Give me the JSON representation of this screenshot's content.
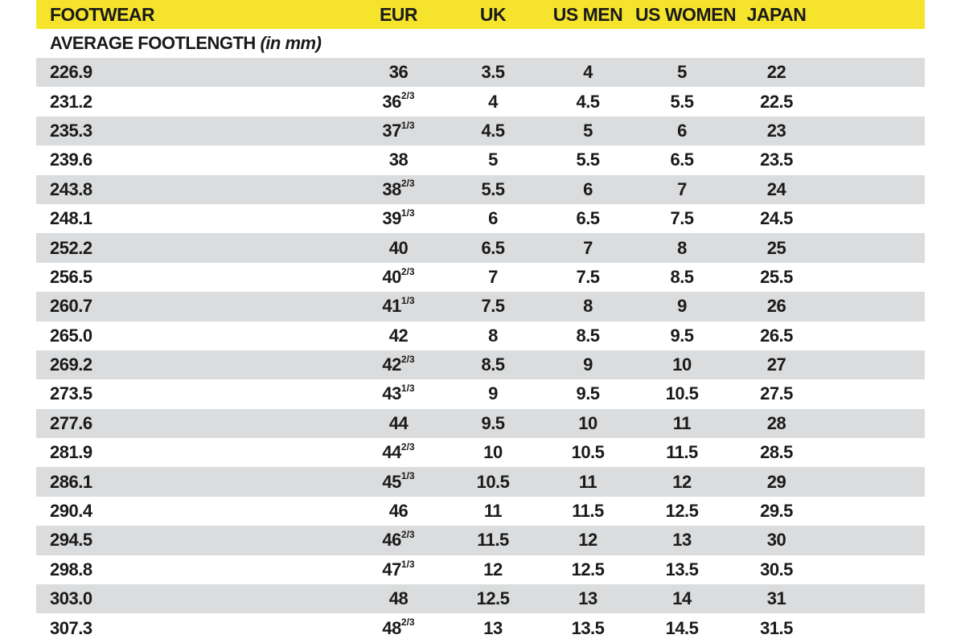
{
  "table": {
    "columns": [
      "FOOTWEAR",
      "EUR",
      "UK",
      "US MEN",
      "US WOMEN",
      "JAPAN"
    ],
    "subheader_label": "AVERAGE FOOTLENGTH",
    "subheader_note": "(in mm)",
    "colors": {
      "header_bg": "#F6E42C",
      "alt_row_bg": "#DBDCDD",
      "text": "#1A1A1A",
      "page_bg": "#FFFFFF"
    },
    "rows": [
      {
        "mm": "226.9",
        "eur": "36",
        "eur_frac": "",
        "uk": "3.5",
        "us_men": "4",
        "us_women": "5",
        "japan": "22"
      },
      {
        "mm": "231.2",
        "eur": "36",
        "eur_frac": "2/3",
        "uk": "4",
        "us_men": "4.5",
        "us_women": "5.5",
        "japan": "22.5"
      },
      {
        "mm": "235.3",
        "eur": "37",
        "eur_frac": "1/3",
        "uk": "4.5",
        "us_men": "5",
        "us_women": "6",
        "japan": "23"
      },
      {
        "mm": "239.6",
        "eur": "38",
        "eur_frac": "",
        "uk": "5",
        "us_men": "5.5",
        "us_women": "6.5",
        "japan": "23.5"
      },
      {
        "mm": "243.8",
        "eur": "38",
        "eur_frac": "2/3",
        "uk": "5.5",
        "us_men": "6",
        "us_women": "7",
        "japan": "24"
      },
      {
        "mm": "248.1",
        "eur": "39",
        "eur_frac": "1/3",
        "uk": "6",
        "us_men": "6.5",
        "us_women": "7.5",
        "japan": "24.5"
      },
      {
        "mm": "252.2",
        "eur": "40",
        "eur_frac": "",
        "uk": "6.5",
        "us_men": "7",
        "us_women": "8",
        "japan": "25"
      },
      {
        "mm": "256.5",
        "eur": "40",
        "eur_frac": "2/3",
        "uk": "7",
        "us_men": "7.5",
        "us_women": "8.5",
        "japan": "25.5"
      },
      {
        "mm": "260.7",
        "eur": "41",
        "eur_frac": "1/3",
        "uk": "7.5",
        "us_men": "8",
        "us_women": "9",
        "japan": "26"
      },
      {
        "mm": "265.0",
        "eur": "42",
        "eur_frac": "",
        "uk": "8",
        "us_men": "8.5",
        "us_women": "9.5",
        "japan": "26.5"
      },
      {
        "mm": "269.2",
        "eur": "42",
        "eur_frac": "2/3",
        "uk": "8.5",
        "us_men": "9",
        "us_women": "10",
        "japan": "27"
      },
      {
        "mm": "273.5",
        "eur": "43",
        "eur_frac": "1/3",
        "uk": "9",
        "us_men": "9.5",
        "us_women": "10.5",
        "japan": "27.5"
      },
      {
        "mm": "277.6",
        "eur": "44",
        "eur_frac": "",
        "uk": "9.5",
        "us_men": "10",
        "us_women": "11",
        "japan": "28"
      },
      {
        "mm": "281.9",
        "eur": "44",
        "eur_frac": "2/3",
        "uk": "10",
        "us_men": "10.5",
        "us_women": "11.5",
        "japan": "28.5"
      },
      {
        "mm": "286.1",
        "eur": "45",
        "eur_frac": "1/3",
        "uk": "10.5",
        "us_men": "11",
        "us_women": "12",
        "japan": "29"
      },
      {
        "mm": "290.4",
        "eur": "46",
        "eur_frac": "",
        "uk": "11",
        "us_men": "11.5",
        "us_women": "12.5",
        "japan": "29.5"
      },
      {
        "mm": "294.5",
        "eur": "46",
        "eur_frac": "2/3",
        "uk": "11.5",
        "us_men": "12",
        "us_women": "13",
        "japan": "30"
      },
      {
        "mm": "298.8",
        "eur": "47",
        "eur_frac": "1/3",
        "uk": "12",
        "us_men": "12.5",
        "us_women": "13.5",
        "japan": "30.5"
      },
      {
        "mm": "303.0",
        "eur": "48",
        "eur_frac": "",
        "uk": "12.5",
        "us_men": "13",
        "us_women": "14",
        "japan": "31"
      },
      {
        "mm": "307.3",
        "eur": "48",
        "eur_frac": "2/3",
        "uk": "13",
        "us_men": "13.5",
        "us_women": "14.5",
        "japan": "31.5"
      }
    ]
  }
}
